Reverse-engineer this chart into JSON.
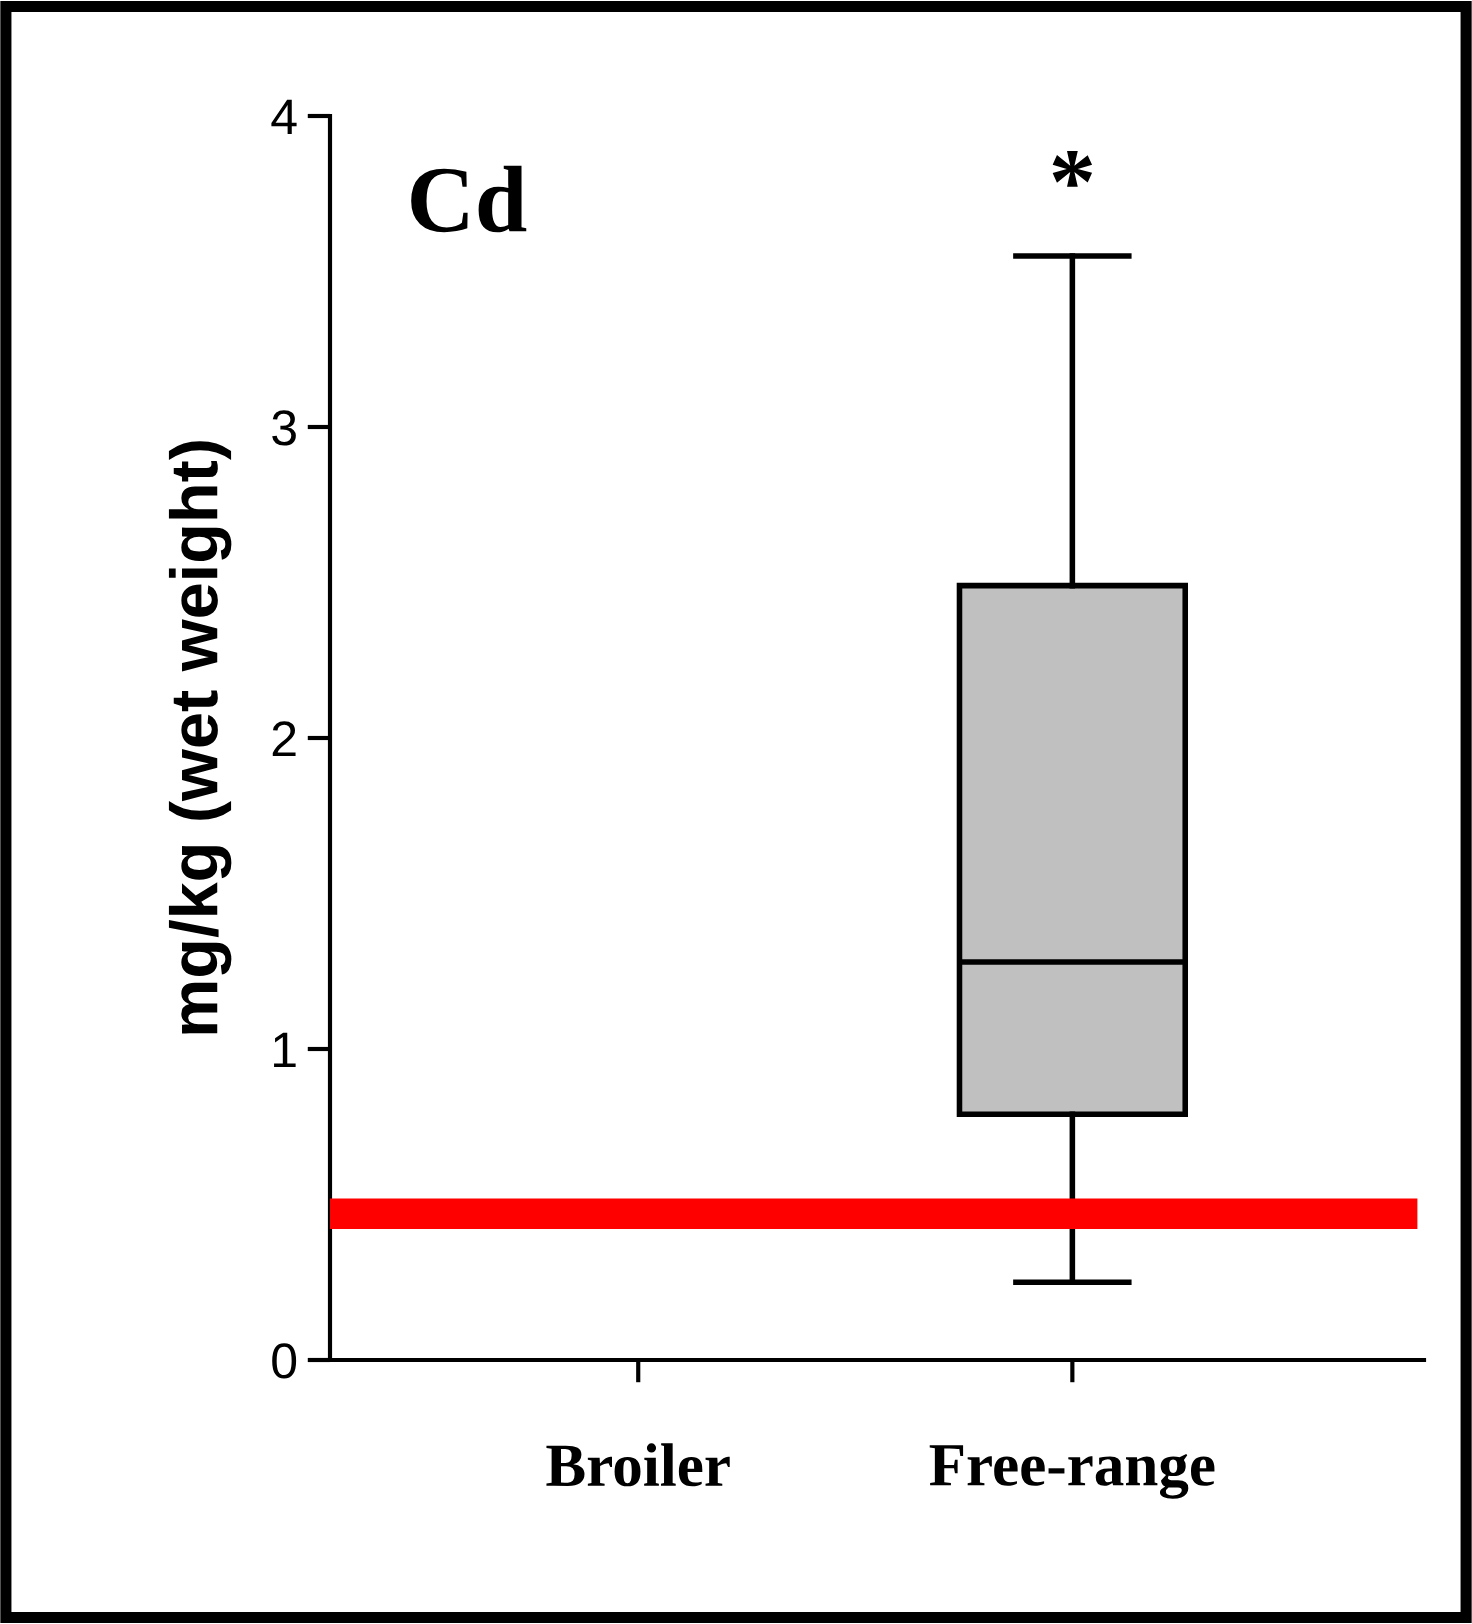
{
  "chart_data": {
    "type": "box",
    "title": "Cd",
    "ylabel": "mg/kg (wet weight)",
    "categories": [
      "Broiler",
      "Free-range"
    ],
    "boxes": [
      null,
      {
        "low": 0.25,
        "q1": 0.79,
        "median": 1.28,
        "q3": 2.49,
        "high": 3.55
      }
    ],
    "color": "#c0c0c0",
    "ylim": [
      0,
      4
    ],
    "yticks": [
      0,
      1,
      2,
      3,
      4
    ],
    "ref_lines": [
      {
        "axis": "y",
        "value": 0.47,
        "label": null,
        "color": "#ff0000"
      }
    ],
    "annotations": [
      "*"
    ],
    "grid": false,
    "legend": false
  }
}
